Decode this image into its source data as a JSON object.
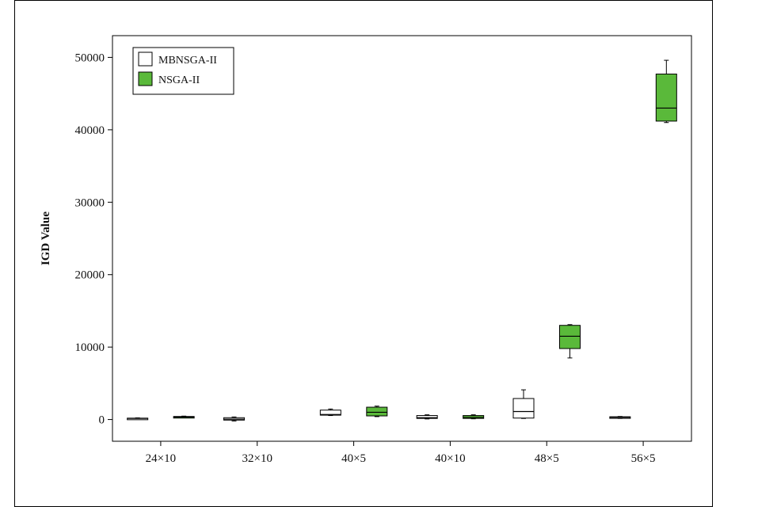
{
  "chart_data": {
    "type": "boxplot",
    "ylabel": "IGD Value",
    "xlabel": "",
    "categories": [
      "24×10",
      "32×10",
      "40×5",
      "40×10",
      "48×5",
      "56×5"
    ],
    "ylim": [
      -3000,
      53000
    ],
    "yticks": [
      0,
      10000,
      20000,
      30000,
      40000,
      50000
    ],
    "yticklabels": [
      "0",
      "10000",
      "20000",
      "30000",
      "40000",
      "50000"
    ],
    "legend_position": "top-left",
    "series": [
      {
        "name": "MBNSGA-II",
        "color": "#ffffff",
        "boxes": [
          {
            "min": 80,
            "q1": 120,
            "median": 150,
            "q3": 190,
            "max": 230
          },
          {
            "min": -200,
            "q1": -80,
            "median": 50,
            "q3": 250,
            "max": 350
          },
          {
            "min": 550,
            "q1": 600,
            "median": 700,
            "q3": 1300,
            "max": 1450
          },
          {
            "min": 80,
            "q1": 150,
            "median": 250,
            "q3": 550,
            "max": 650
          },
          {
            "min": 150,
            "q1": 200,
            "median": 1100,
            "q3": 2900,
            "max": 4100
          },
          {
            "min": 150,
            "q1": 200,
            "median": 300,
            "q3": 380,
            "max": 420
          }
        ]
      },
      {
        "name": "NSGA-II",
        "color": "#5ab93a",
        "boxes": [
          {
            "min": 250,
            "q1": 300,
            "median": 350,
            "q3": 420,
            "max": 470
          },
          null,
          {
            "min": 400,
            "q1": 500,
            "median": 1000,
            "q3": 1700,
            "max": 1850
          },
          {
            "min": 100,
            "q1": 150,
            "median": 300,
            "q3": 550,
            "max": 650
          },
          {
            "min": 8500,
            "q1": 9800,
            "median": 11500,
            "q3": 13000,
            "max": 13100
          },
          {
            "min": 41000,
            "q1": 41200,
            "median": 43000,
            "q3": 47700,
            "max": 49600
          }
        ]
      }
    ]
  }
}
